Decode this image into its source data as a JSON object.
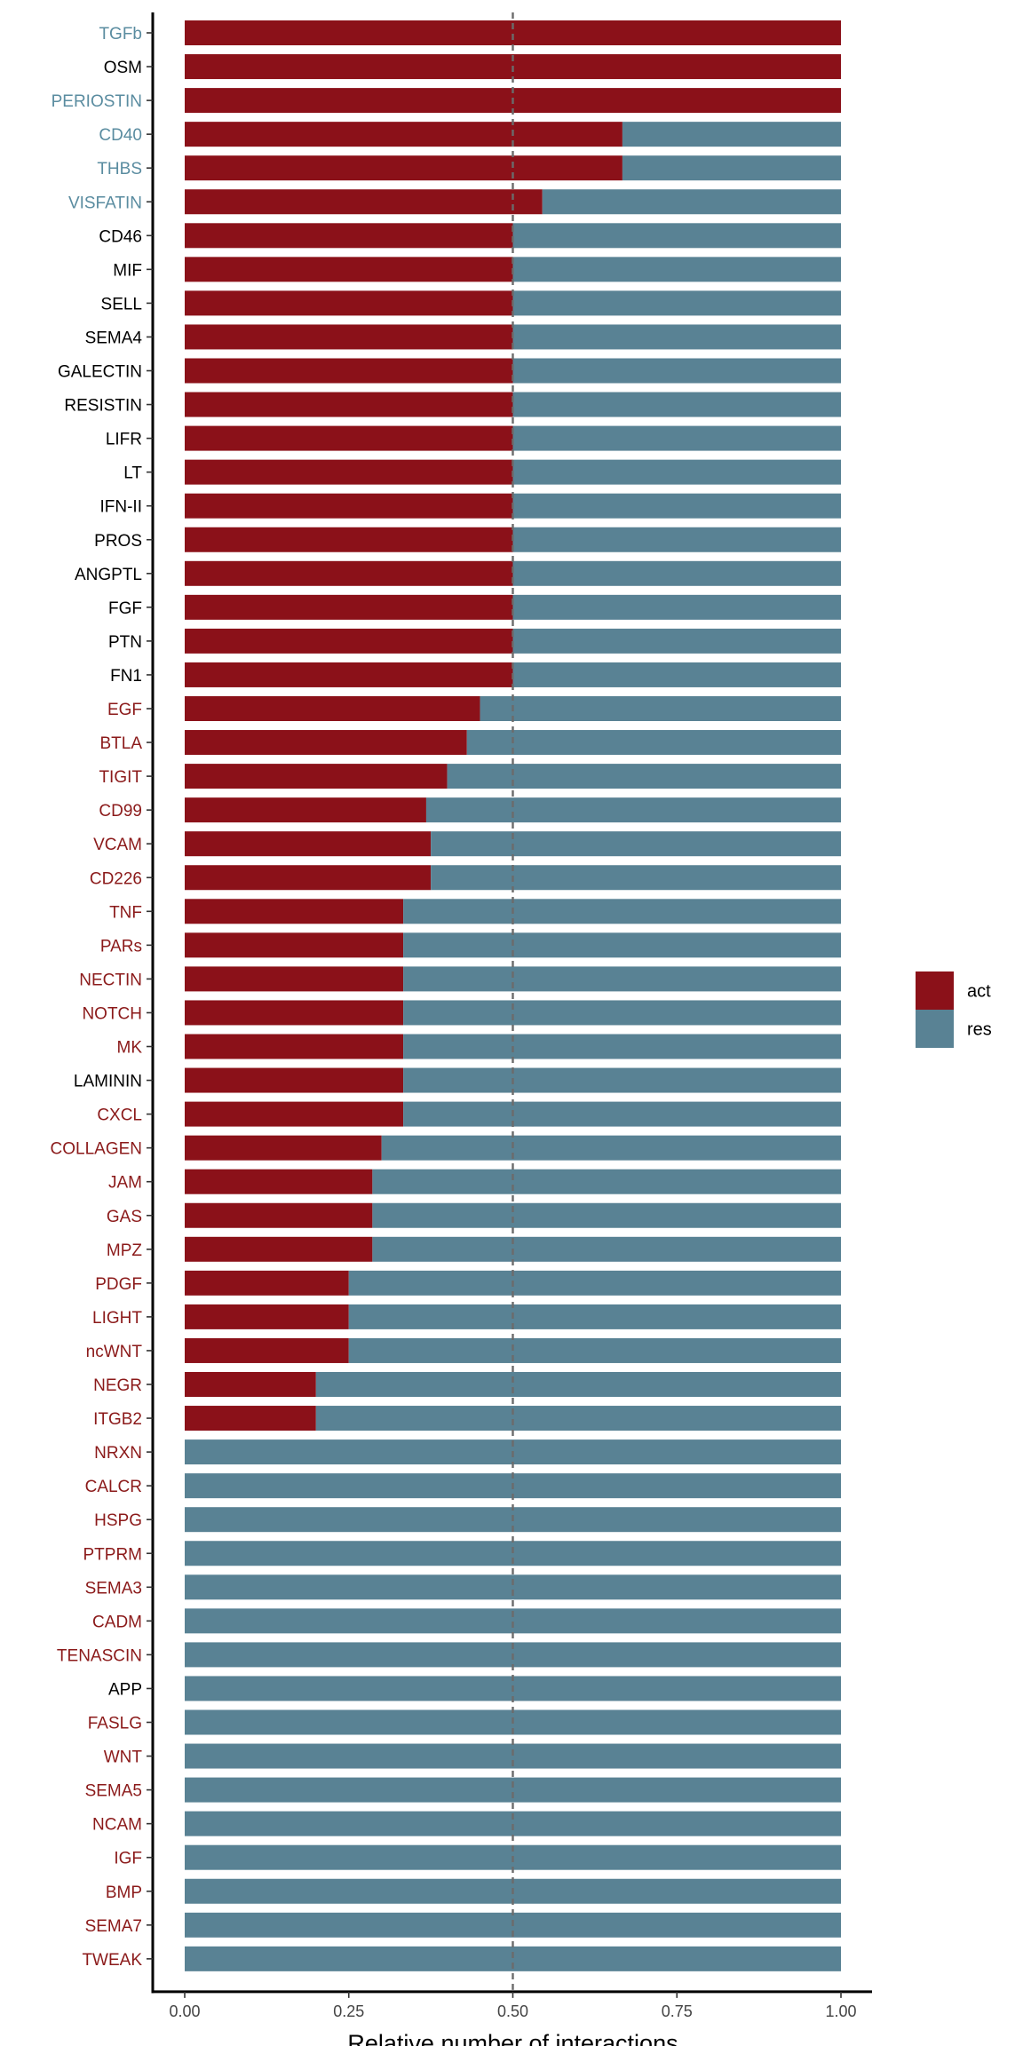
{
  "colors": {
    "act": "#8b1119",
    "res": "#598294",
    "label_act": "#8b1a1a",
    "label_res": "#5a8ca0",
    "label_neutral": "#000000",
    "reference_line": "#6b6b6b"
  },
  "chart_data": {
    "type": "bar",
    "orientation": "horizontal",
    "stacked": true,
    "title": "",
    "xlabel": "Relative number of interactions",
    "ylabel": "",
    "xlim": [
      0,
      1
    ],
    "x_ticks": [
      "0.00",
      "0.25",
      "0.50",
      "0.75",
      "1.00"
    ],
    "x_tick_values": [
      0,
      0.25,
      0.5,
      0.75,
      1.0
    ],
    "reference_line": 0.5,
    "grid": false,
    "legend_position": "right",
    "categories": [
      "TGFb",
      "OSM",
      "PERIOSTIN",
      "CD40",
      "THBS",
      "VISFATIN",
      "CD46",
      "MIF",
      "SELL",
      "SEMA4",
      "GALECTIN",
      "RESISTIN",
      "LIFR",
      "LT",
      "IFN-II",
      "PROS",
      "ANGPTL",
      "FGF",
      "PTN",
      "FN1",
      "EGF",
      "BTLA",
      "TIGIT",
      "CD99",
      "VCAM",
      "CD226",
      "TNF",
      "PARs",
      "NECTIN",
      "NOTCH",
      "MK",
      "LAMININ",
      "CXCL",
      "COLLAGEN",
      "JAM",
      "GAS",
      "MPZ",
      "PDGF",
      "LIGHT",
      "ncWNT",
      "NEGR",
      "ITGB2",
      "NRXN",
      "CALCR",
      "HSPG",
      "PTPRM",
      "SEMA3",
      "CADM",
      "TENASCIN",
      "APP",
      "FASLG",
      "WNT",
      "SEMA5",
      "NCAM",
      "IGF",
      "BMP",
      "SEMA7",
      "TWEAK"
    ],
    "label_group": [
      "res",
      "neutral",
      "res",
      "res",
      "res",
      "res",
      "neutral",
      "neutral",
      "neutral",
      "neutral",
      "neutral",
      "neutral",
      "neutral",
      "neutral",
      "neutral",
      "neutral",
      "neutral",
      "neutral",
      "neutral",
      "neutral",
      "act",
      "act",
      "act",
      "act",
      "act",
      "act",
      "act",
      "act",
      "act",
      "act",
      "act",
      "neutral",
      "act",
      "act",
      "act",
      "act",
      "act",
      "act",
      "act",
      "act",
      "act",
      "act",
      "act",
      "act",
      "act",
      "act",
      "act",
      "act",
      "act",
      "neutral",
      "act",
      "act",
      "act",
      "act",
      "act",
      "act",
      "act",
      "act"
    ],
    "series": [
      {
        "name": "act",
        "values": [
          1.0,
          1.0,
          1.0,
          0.667,
          0.667,
          0.545,
          0.5,
          0.5,
          0.5,
          0.5,
          0.5,
          0.5,
          0.5,
          0.5,
          0.5,
          0.5,
          0.5,
          0.5,
          0.5,
          0.5,
          0.45,
          0.43,
          0.4,
          0.368,
          0.375,
          0.375,
          0.333,
          0.333,
          0.333,
          0.333,
          0.333,
          0.333,
          0.333,
          0.3,
          0.286,
          0.286,
          0.286,
          0.25,
          0.25,
          0.25,
          0.2,
          0.2,
          0,
          0,
          0,
          0,
          0,
          0,
          0,
          0,
          0,
          0,
          0,
          0,
          0,
          0,
          0,
          0
        ]
      },
      {
        "name": "res",
        "values": [
          0,
          0,
          0,
          0.333,
          0.333,
          0.455,
          0.5,
          0.5,
          0.5,
          0.5,
          0.5,
          0.5,
          0.5,
          0.5,
          0.5,
          0.5,
          0.5,
          0.5,
          0.5,
          0.5,
          0.55,
          0.57,
          0.6,
          0.632,
          0.625,
          0.625,
          0.667,
          0.667,
          0.667,
          0.667,
          0.667,
          0.667,
          0.667,
          0.7,
          0.714,
          0.714,
          0.714,
          0.75,
          0.75,
          0.75,
          0.8,
          0.8,
          1,
          1,
          1,
          1,
          1,
          1,
          1,
          1,
          1,
          1,
          1,
          1,
          1,
          1,
          1,
          1
        ]
      }
    ]
  }
}
